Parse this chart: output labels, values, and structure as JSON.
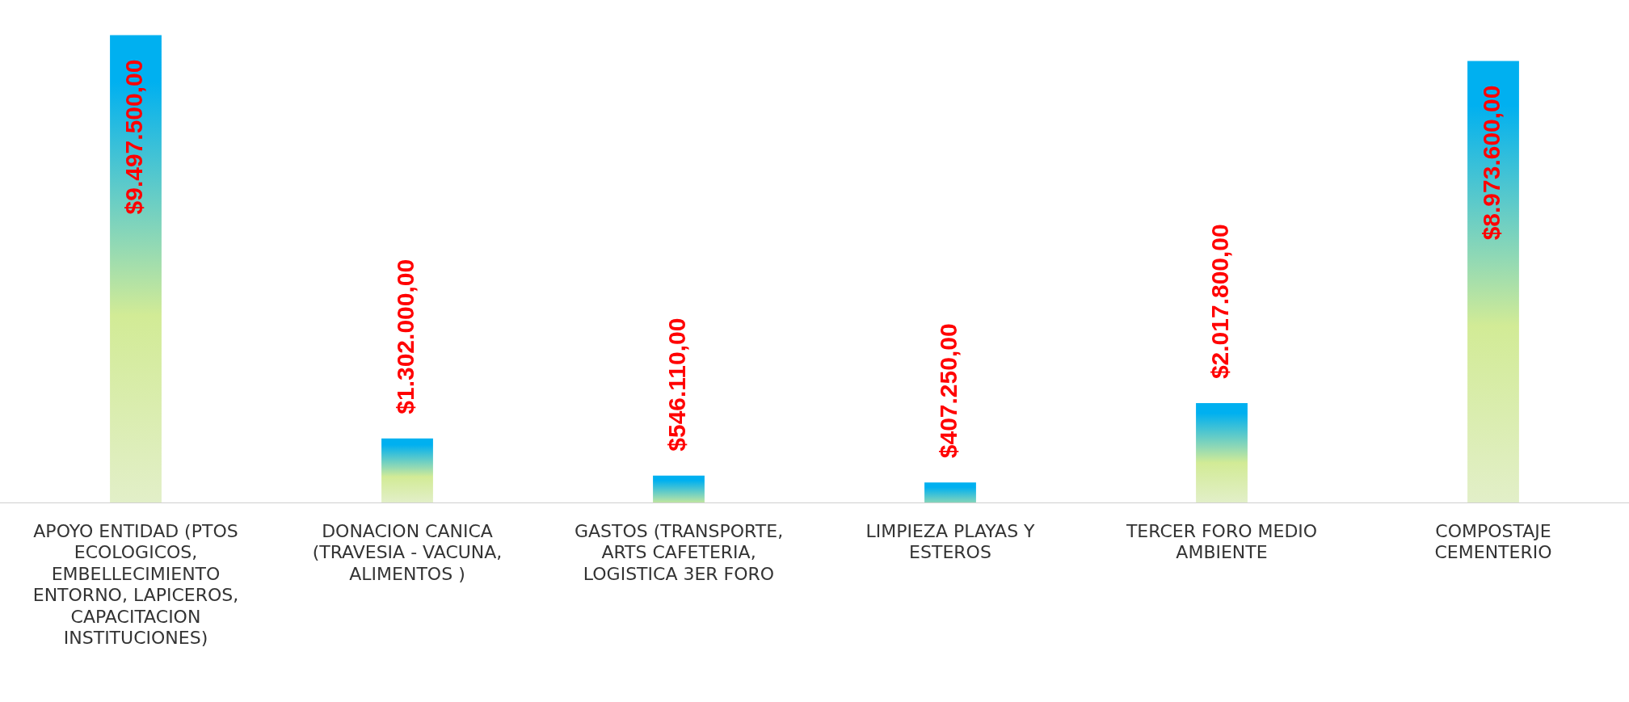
{
  "chart_data": {
    "type": "bar",
    "categories": [
      "APOYO ENTIDAD (PTOS ECOLOGICOS, EMBELLECIMIENTO ENTORNO, LAPICEROS, CAPACITACION INSTITUCIONES)",
      "DONACION CANICA (TRAVESIA - VACUNA, ALIMENTOS )",
      "GASTOS (TRANSPORTE, ARTS CAFETERIA, LOGISTICA 3ER FORO",
      "LIMPIEZA PLAYAS Y ESTEROS",
      "TERCER FORO MEDIO AMBIENTE",
      "COMPOSTAJE CEMENTERIO"
    ],
    "values": [
      9497500,
      1302000,
      546110,
      407250,
      2017800,
      8973600
    ],
    "color": "#00b0f0",
    "value_labels": [
      "$9.497.500,00",
      "$1.302.000,00",
      "$546.110,00",
      "$407.250,00",
      "$2.017.800,00",
      "$8.973.600,00"
    ],
    "grid": false,
    "legend": false
  }
}
